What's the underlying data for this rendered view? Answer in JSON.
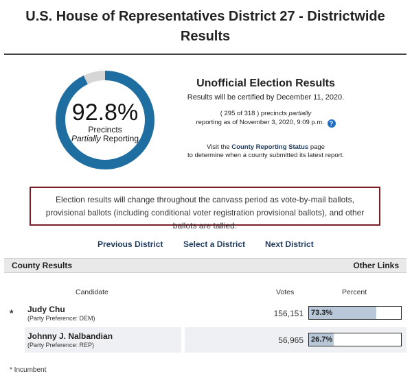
{
  "page": {
    "title": "U.S. House of Representatives District 27 - Districtwide Results"
  },
  "reporting": {
    "percent_value": 92.8,
    "percent_label": "92.8%",
    "line1": "Precincts",
    "line2_italic": "Partially",
    "line2_rest": "Reporting",
    "gauge_fill_color": "#1f6ea1",
    "gauge_track_color": "#d6d6d6"
  },
  "info": {
    "heading": "Unofficial Election Results",
    "certified": "Results will be certified by December 11, 2020.",
    "precincts_open": "( 295 of 318 ) precincts",
    "precincts_italic": "partially",
    "precincts_line2": "reporting as of November 3, 2020, 9:09 p.m.",
    "help_icon": "?",
    "visit_pre": "Visit the",
    "visit_link": "County Reporting Status",
    "visit_post": "page",
    "visit_line2": "to determine when a county submitted its latest report."
  },
  "notice": "Election results will change throughout the canvass period as vote-by-mail ballots, provisional ballots (including conditional voter registration provisional ballots), and other ballots are tallied.",
  "nav": {
    "previous": "Previous District",
    "select": "Select a District",
    "next": "Next District"
  },
  "section_bar": {
    "left": "County Results",
    "right": "Other Links"
  },
  "table": {
    "headers": {
      "candidate": "Candidate",
      "votes": "Votes",
      "percent": "Percent"
    },
    "rows": [
      {
        "incumbent": "*",
        "name": "Judy Chu",
        "party": "(Party Preference: DEM)",
        "votes": "156,151",
        "percent_label": "73.3%",
        "percent_value": 73.3
      },
      {
        "incumbent": "",
        "name": "Johnny J. Nalbandian",
        "party": "(Party Preference: REP)",
        "votes": "56,965",
        "percent_label": "26.7%",
        "percent_value": 26.7
      }
    ]
  },
  "footnote": "* Incumbent"
}
